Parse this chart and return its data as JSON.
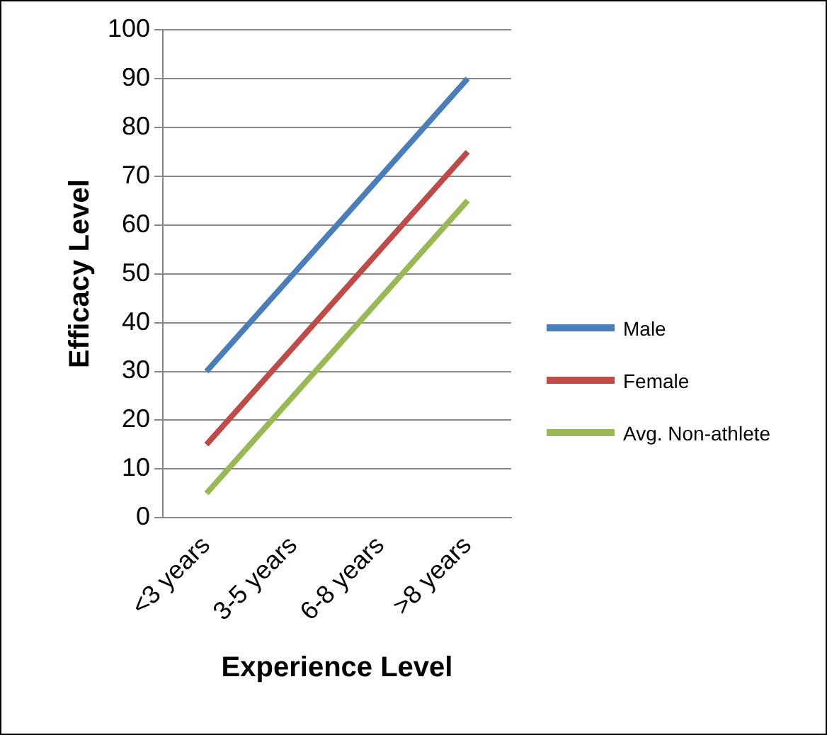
{
  "chart_data": {
    "type": "line",
    "xlabel": "Experience Level",
    "ylabel": "Efficacy Level",
    "categories": [
      "<3 years",
      "3-5 years",
      "6-8 years",
      ">8 years"
    ],
    "series": [
      {
        "name": "Male",
        "color": "#4a7ebb",
        "values": [
          30,
          50,
          70,
          90
        ]
      },
      {
        "name": "Female",
        "color": "#be4b48",
        "values": [
          15,
          35,
          55,
          75
        ]
      },
      {
        "name": "Avg. Non-athlete",
        "color": "#98b954",
        "values": [
          5,
          25,
          45,
          65
        ]
      }
    ],
    "ylim": [
      0,
      100
    ],
    "yticks": [
      0,
      10,
      20,
      30,
      40,
      50,
      60,
      70,
      80,
      90,
      100
    ],
    "grid": "y",
    "legend": "right",
    "marker": "none",
    "line_style": "solid"
  }
}
